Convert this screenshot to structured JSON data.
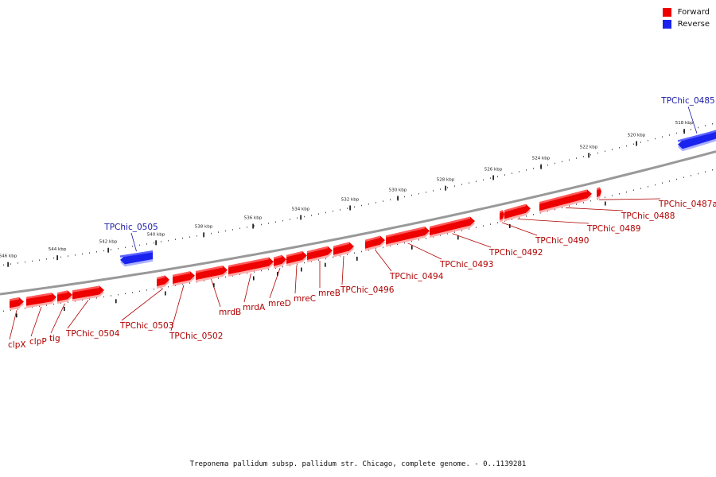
{
  "colors": {
    "forward": "#ee0000",
    "reverse": "#1a22ee",
    "forward_label": "#b00000",
    "reverse_label": "#1a1aa8",
    "backbone": "#999999"
  },
  "legend": [
    {
      "name": "Forward",
      "color": "#ee0000"
    },
    {
      "name": "Reverse",
      "color": "#1a22ee"
    }
  ],
  "caption": "Treponema pallidum subsp. pallidum str. Chicago, complete genome. - 0..1139281",
  "ticks": [
    "518 kbp",
    "520 kbp",
    "522 kbp",
    "524 kbp",
    "526 kbp",
    "528 kbp",
    "530 kbp",
    "532 kbp",
    "534 kbp",
    "536 kbp",
    "538 kbp",
    "540 kbp",
    "542 kbp",
    "544 kbp",
    "546 kbp"
  ],
  "genes": [
    {
      "name": "TPChic_0485",
      "strand": "reverse"
    },
    {
      "name": "TPChic_0487a",
      "strand": "forward"
    },
    {
      "name": "TPChic_0488",
      "strand": "forward"
    },
    {
      "name": "TPChic_0489",
      "strand": "forward"
    },
    {
      "name": "TPChic_0490",
      "strand": "forward"
    },
    {
      "name": "TPChic_0492",
      "strand": "forward"
    },
    {
      "name": "TPChic_0493",
      "strand": "forward"
    },
    {
      "name": "TPChic_0494",
      "strand": "forward"
    },
    {
      "name": "TPChic_0496",
      "strand": "forward"
    },
    {
      "name": "mreB",
      "strand": "forward"
    },
    {
      "name": "mreC",
      "strand": "forward"
    },
    {
      "name": "mreD",
      "strand": "forward"
    },
    {
      "name": "mrdA",
      "strand": "forward"
    },
    {
      "name": "mrdB",
      "strand": "forward"
    },
    {
      "name": "TPChic_0502",
      "strand": "forward"
    },
    {
      "name": "TPChic_0503",
      "strand": "forward"
    },
    {
      "name": "TPChic_0504",
      "strand": "forward"
    },
    {
      "name": "TPChic_0505",
      "strand": "reverse"
    },
    {
      "name": "tig",
      "strand": "forward"
    },
    {
      "name": "clpP",
      "strand": "forward"
    },
    {
      "name": "clpX",
      "strand": "forward"
    }
  ]
}
